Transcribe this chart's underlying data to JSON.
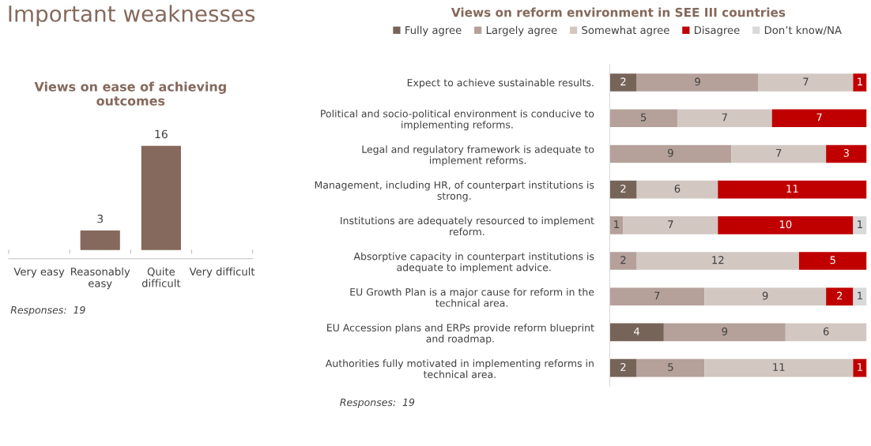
{
  "chart_data": [
    {
      "type": "bar",
      "title": "Views on ease of achieving\noutcomes",
      "categories": [
        "Very easy",
        "Reasonably\neasy",
        "Quite\ndifficult",
        "Very difficult"
      ],
      "values": [
        0,
        3,
        16,
        0
      ],
      "value_labels": [
        null,
        "3",
        "16",
        null
      ],
      "color": "#85695c",
      "tick_labels": "x",
      "grid": false,
      "annotations": [
        "Important weaknesses",
        "Responses:  19"
      ]
    },
    {
      "type": "bar",
      "orientation": "horizontal",
      "stacked": true,
      "title": "Views on reform environment in SEE III countries",
      "categories": [
        "Expect to achieve sustainable results.",
        "Political and socio-political environment is conducive to\nimplementing reforms.",
        "Legal and regulatory framework is adequate to\nimplement reforms.",
        "Management, including HR, of counterpart institutions is\nstrong.",
        "Institutions are adequately resourced to implement\nreform.",
        "Absorptive capacity in counterpart institutions is\nadequate to implement advice.",
        "EU Growth Plan is a major cause for reform in the\ntechnical area.",
        "EU Accession plans and ERPs provide reform blueprint\nand roadmap.",
        "Authorities fully motivated in implementing reforms in\ntechnical area."
      ],
      "series": [
        {
          "name": "Fully agree",
          "color": "#776459",
          "values": [
            2,
            null,
            null,
            2,
            null,
            null,
            null,
            4,
            2
          ]
        },
        {
          "name": "Largely agree",
          "color": "#b5a19a",
          "values": [
            9,
            5,
            9,
            null,
            1,
            2,
            7,
            9,
            5
          ]
        },
        {
          "name": "Somewhat agree",
          "color": "#d3c7c2",
          "values": [
            7,
            7,
            7,
            6,
            7,
            12,
            9,
            6,
            11
          ]
        },
        {
          "name": "Disagree",
          "color": "#c00000",
          "values": [
            1,
            7,
            3,
            11,
            10,
            5,
            2,
            null,
            1
          ]
        },
        {
          "name": "Don’t know/NA",
          "color": "#d9d9d9",
          "values": [
            null,
            null,
            null,
            null,
            1,
            null,
            1,
            null,
            null
          ]
        }
      ],
      "xlim": [
        0,
        19
      ],
      "tick_labels": "y",
      "data_labels": true,
      "legend": "top",
      "grid": false,
      "annotations": [
        "Responses:  19"
      ]
    }
  ]
}
